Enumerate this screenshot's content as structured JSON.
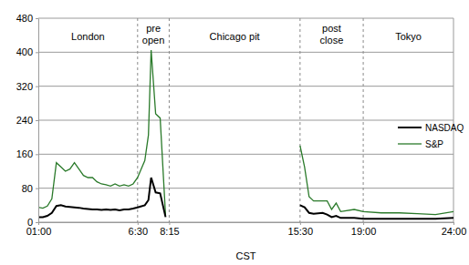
{
  "chart_data": {
    "type": "line",
    "x_label": "CST",
    "x": [
      1,
      1.25,
      1.5,
      1.75,
      2,
      2.25,
      2.5,
      2.75,
      3,
      3.25,
      3.5,
      3.75,
      4,
      4.25,
      4.5,
      4.75,
      5,
      5.25,
      5.5,
      5.75,
      6,
      6.25,
      6.5,
      6.75,
      6.9,
      7.1,
      7.25,
      7.5,
      7.75,
      8.05,
      12,
      15.5,
      15.75,
      16,
      16.25,
      16.75,
      17,
      17.25,
      17.5,
      17.75,
      18.5,
      19,
      20,
      21,
      22,
      23,
      24
    ],
    "series": [
      {
        "name": "NASDAQ",
        "color": "#000000",
        "values": [
          12,
          12,
          15,
          22,
          38,
          40,
          37,
          36,
          35,
          34,
          32,
          31,
          30,
          30,
          29,
          30,
          29,
          30,
          28,
          30,
          30,
          32,
          35,
          38,
          40,
          52,
          105,
          70,
          68,
          12,
          null,
          40,
          35,
          22,
          20,
          22,
          18,
          12,
          15,
          10,
          10,
          8,
          8,
          8,
          8,
          8,
          10
        ]
      },
      {
        "name": "S&P",
        "color": "#2a7a2a",
        "values": [
          35,
          33,
          38,
          55,
          140,
          130,
          120,
          125,
          140,
          125,
          110,
          105,
          105,
          95,
          90,
          88,
          85,
          90,
          85,
          88,
          85,
          90,
          105,
          130,
          145,
          205,
          405,
          255,
          245,
          15,
          null,
          180,
          130,
          60,
          50,
          50,
          50,
          30,
          45,
          25,
          30,
          25,
          22,
          22,
          20,
          18,
          25
        ]
      }
    ],
    "xlim": [
      1,
      24
    ],
    "xticks": [
      {
        "value": 1,
        "label": "01:00"
      },
      {
        "value": 6.5,
        "label": "6:30"
      },
      {
        "value": 8.25,
        "label": "8:15"
      },
      {
        "value": 15.5,
        "label": "15:30"
      },
      {
        "value": 19,
        "label": "19:00"
      },
      {
        "value": 24,
        "label": "24:00"
      }
    ],
    "ylim": [
      0,
      480
    ],
    "yticks": [
      0,
      80,
      160,
      240,
      320,
      400,
      480
    ],
    "grid": true,
    "legend": "right",
    "regions": [
      {
        "label": [
          "London"
        ],
        "start": 1,
        "end": 6.5
      },
      {
        "label": [
          "pre",
          "open"
        ],
        "start": 6.5,
        "end": 8.25
      },
      {
        "label": [
          "Chicago pit"
        ],
        "start": 8.25,
        "end": 15.5
      },
      {
        "label": [
          "post",
          "close"
        ],
        "start": 15.5,
        "end": 19
      },
      {
        "label": [
          "Tokyo"
        ],
        "start": 19,
        "end": 24
      }
    ]
  }
}
